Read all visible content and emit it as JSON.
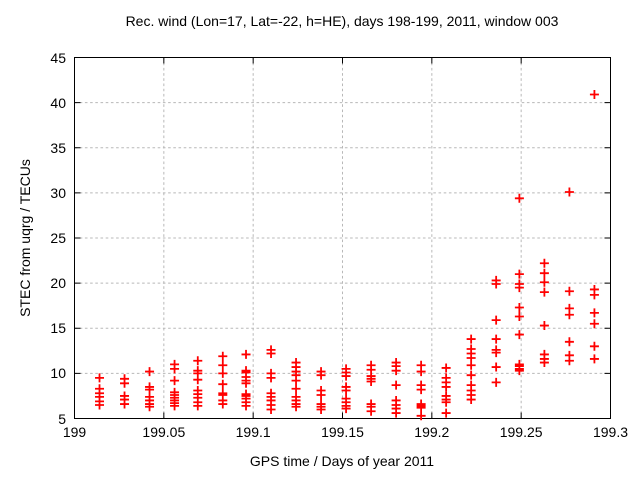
{
  "chart_data": {
    "type": "scatter",
    "title": "Rec. wind (Lon=17, Lat=-22, h=HE), days 198-199, 2011, window 003",
    "xlabel": "GPS time / Days of year 2011",
    "ylabel": "STEC from uqrg / TECUs",
    "xlim": [
      199,
      199.3
    ],
    "ylim": [
      5,
      45
    ],
    "xticks": [
      199,
      199.05,
      199.1,
      199.15,
      199.2,
      199.25,
      199.3
    ],
    "xtick_labels": [
      "199",
      "199.05",
      "199.1",
      "199.15",
      "199.2",
      "199.25",
      "199.3"
    ],
    "yticks": [
      5,
      10,
      15,
      20,
      25,
      30,
      35,
      40,
      45
    ],
    "ytick_labels": [
      "5",
      "10",
      "15",
      "20",
      "25",
      "30",
      "35",
      "40",
      "45"
    ],
    "grid": true,
    "legend": "none",
    "marker": "plus",
    "marker_color": "#ff0000",
    "border_color": "#000000",
    "grid_color": "#b8b8b8",
    "series": [
      {
        "name": "STEC",
        "clusters": [
          {
            "t": 199.014,
            "values": [
              9.5,
              8.3,
              7.8,
              7.4,
              6.9,
              6.5
            ]
          },
          {
            "t": 199.028,
            "values": [
              9.4,
              8.9,
              7.5,
              7.1,
              6.6
            ]
          },
          {
            "t": 199.042,
            "values": [
              10.2,
              8.5,
              8.2,
              7.4,
              7.0,
              6.6,
              6.3
            ]
          },
          {
            "t": 199.056,
            "values": [
              11.0,
              10.5,
              9.2,
              7.9,
              7.6,
              7.3,
              7.0,
              6.7,
              6.4
            ]
          },
          {
            "t": 199.069,
            "values": [
              11.4,
              10.3,
              10.0,
              9.3,
              8.1,
              7.7,
              7.3,
              6.8,
              6.4
            ]
          },
          {
            "t": 199.083,
            "values": [
              11.9,
              10.9,
              10.0,
              8.8,
              7.8,
              7.6,
              7.0,
              6.6
            ]
          },
          {
            "t": 199.096,
            "values": [
              12.1,
              10.3,
              10.1,
              9.6,
              9.2,
              8.9,
              7.7,
              7.5,
              7.2,
              6.8,
              6.4
            ]
          },
          {
            "t": 199.11,
            "values": [
              12.6,
              12.2,
              10.0,
              9.5,
              7.8,
              7.4,
              7.0,
              6.5,
              6.0
            ]
          },
          {
            "t": 199.124,
            "values": [
              11.2,
              10.7,
              10.2,
              9.8,
              9.2,
              8.3,
              7.4,
              7.0,
              6.6,
              6.3
            ]
          },
          {
            "t": 199.138,
            "values": [
              10.2,
              9.8,
              8.1,
              7.6,
              6.6,
              6.3,
              6.0
            ]
          },
          {
            "t": 199.152,
            "values": [
              10.5,
              10.1,
              9.7,
              8.5,
              8.1,
              7.2,
              6.8,
              6.4,
              6.1
            ]
          },
          {
            "t": 199.166,
            "values": [
              10.9,
              10.4,
              9.7,
              9.4,
              9.1,
              6.6,
              6.3,
              5.8
            ]
          },
          {
            "t": 199.18,
            "values": [
              11.2,
              10.8,
              10.3,
              8.7,
              7.0,
              6.5,
              6.1,
              5.6
            ]
          },
          {
            "t": 199.194,
            "values": [
              10.9,
              10.2,
              8.7,
              8.2,
              6.6,
              6.4,
              6.2,
              5.3
            ]
          },
          {
            "t": 199.208,
            "values": [
              10.6,
              9.5,
              9.0,
              8.5,
              7.5,
              7.1,
              6.8,
              5.6
            ]
          },
          {
            "t": 199.222,
            "values": [
              13.8,
              12.7,
              12.2,
              11.7,
              10.9,
              9.8,
              8.7,
              8.1,
              7.6,
              7.1
            ]
          },
          {
            "t": 199.236,
            "values": [
              20.3,
              19.9,
              15.9,
              13.8,
              12.6,
              12.3,
              10.7,
              9.0
            ]
          },
          {
            "t": 199.249,
            "values": [
              29.4,
              21.0,
              19.9,
              19.5,
              17.3,
              16.3,
              14.3,
              11.0,
              10.8,
              10.5,
              10.3
            ]
          },
          {
            "t": 199.263,
            "values": [
              22.2,
              21.1,
              20.1,
              19.0,
              15.3,
              12.1,
              11.6,
              11.2
            ]
          },
          {
            "t": 199.277,
            "values": [
              30.1,
              19.1,
              17.2,
              16.5,
              13.5,
              12.0,
              11.4
            ]
          },
          {
            "t": 199.291,
            "values": [
              40.9,
              19.3,
              18.7,
              16.7,
              15.5,
              13.0,
              11.6
            ]
          }
        ]
      }
    ]
  }
}
